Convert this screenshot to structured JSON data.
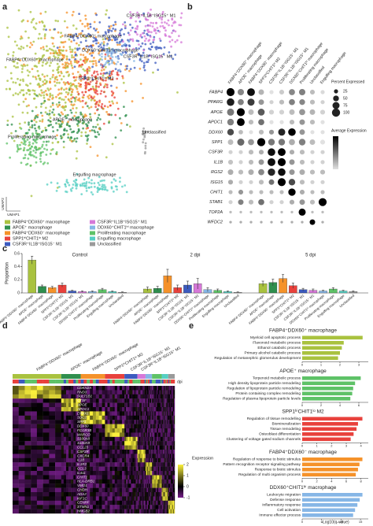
{
  "chart_data": [
    {
      "type": "umap",
      "panel": "a",
      "x_label": "UMAP1",
      "y_label": "UMAP2",
      "annotations": [
        "CSF3R⁺IL1B⁺ISG15⁺ M1",
        "FABP4⁺DDX60⁺ macrophage",
        "DDX60⁺CHIT1ʰⁱ macrophage",
        "CSF3R⁺IL1B⁺ISG15⁻ M1",
        "FABP4⁺DDX60⁻ macrophage",
        "SPP1ʰⁱCHIT1ˡᵒ M2",
        "APOE⁺ macrophage",
        "Unclassified",
        "Proliferating macrophage",
        "Engulfing macrophage"
      ],
      "series": [
        {
          "name": "FABP4⁺DDX60⁺ macrophage",
          "color": "#a9c23f"
        },
        {
          "name": "APOE⁺ macrophage",
          "color": "#2f8f4e"
        },
        {
          "name": "FABP4⁺DDX60⁻ macrophage",
          "color": "#f5922a"
        },
        {
          "name": "SPP1ʰⁱCHIT1ˡᵒ M2",
          "color": "#e8413c"
        },
        {
          "name": "CSF3R⁺IL1B⁺ISG15⁻ M1",
          "color": "#3c5bbf"
        },
        {
          "name": "CSF3R⁺IL1B⁺ISG15⁺ M1",
          "color": "#d678d8"
        },
        {
          "name": "DDX60⁺CHIT1ʰⁱ macrophage",
          "color": "#86b6e6"
        },
        {
          "name": "Proliferating macrophage",
          "color": "#5ec267"
        },
        {
          "name": "Engulfing macrophage",
          "color": "#55cfc3"
        },
        {
          "name": "Unclassified",
          "color": "#9a9a9a"
        }
      ]
    },
    {
      "type": "dotplot",
      "panel": "b",
      "genes": [
        "FABP4",
        "PPARG",
        "APOE",
        "APOC1",
        "DDX60",
        "SPP1",
        "CSF3R",
        "IL1B",
        "RGS2",
        "ISG15",
        "CHIT1",
        "STAB1",
        "TOP2A",
        "WFDC2"
      ],
      "categories": [
        "FABP4⁺DDX60⁺ macrophage",
        "APOE⁺ macrophage",
        "FABP4⁺DDX60⁻ macrophage",
        "SPP1ʰⁱCHIT1ˡᵒ M2",
        "CSF3R⁺IL1B⁺ISG15⁻ M1",
        "CSF3R⁺IL1B⁺ISG15⁺ M1",
        "DDX60⁺CHIT1ʰⁱ macrophage",
        "Proliferating macrophage",
        "Unclassified",
        "Engulfing macrophage"
      ],
      "size_title": "Percent Expressed",
      "size_ticks": [
        25,
        50,
        75,
        100
      ],
      "color_title": "Average Expression",
      "clim": [
        -1,
        2
      ],
      "pct": [
        [
          95,
          60,
          90,
          45,
          25,
          35,
          55,
          60,
          35,
          25
        ],
        [
          85,
          55,
          75,
          45,
          25,
          35,
          55,
          50,
          35,
          25
        ],
        [
          75,
          95,
          45,
          70,
          35,
          35,
          45,
          55,
          45,
          35
        ],
        [
          65,
          90,
          35,
          55,
          25,
          25,
          35,
          45,
          35,
          25
        ],
        [
          65,
          30,
          25,
          35,
          35,
          75,
          85,
          45,
          25,
          25
        ],
        [
          45,
          75,
          55,
          98,
          65,
          65,
          55,
          65,
          45,
          35
        ],
        [
          25,
          25,
          35,
          35,
          85,
          90,
          35,
          35,
          25,
          25
        ],
        [
          35,
          25,
          35,
          45,
          90,
          95,
          45,
          35,
          25,
          25
        ],
        [
          45,
          35,
          45,
          55,
          80,
          85,
          45,
          45,
          35,
          35
        ],
        [
          35,
          25,
          25,
          35,
          45,
          95,
          65,
          35,
          25,
          25
        ],
        [
          25,
          35,
          25,
          25,
          25,
          25,
          80,
          35,
          25,
          25
        ],
        [
          25,
          45,
          35,
          55,
          25,
          25,
          35,
          45,
          35,
          95
        ],
        [
          10,
          10,
          10,
          10,
          10,
          10,
          10,
          75,
          10,
          10
        ],
        [
          10,
          10,
          10,
          10,
          10,
          10,
          10,
          10,
          45,
          10
        ]
      ],
      "expr": [
        [
          2,
          0.2,
          1.8,
          -0.4,
          -1,
          -0.7,
          0.2,
          0.3,
          -0.5,
          -0.9
        ],
        [
          1.6,
          0.3,
          1.2,
          0,
          -0.8,
          -0.5,
          0.3,
          0.2,
          -0.5,
          -0.8
        ],
        [
          0.4,
          2,
          -0.5,
          0.8,
          -0.8,
          -0.8,
          -0.5,
          0,
          -0.4,
          -0.8
        ],
        [
          0.3,
          2,
          -0.5,
          0.5,
          -1,
          -1,
          -0.5,
          0,
          -0.5,
          -1
        ],
        [
          1,
          -0.5,
          -1,
          -0.5,
          0,
          1.5,
          2,
          0,
          -1,
          -1
        ],
        [
          -0.5,
          0.6,
          0,
          2,
          0.4,
          0.4,
          -0.3,
          0.3,
          -0.5,
          -1
        ],
        [
          -0.8,
          -0.8,
          -0.5,
          -0.3,
          1.8,
          2,
          -0.3,
          -0.5,
          -0.8,
          -0.8
        ],
        [
          -0.6,
          -0.8,
          -0.5,
          0,
          1.8,
          2,
          0,
          -0.5,
          -0.8,
          -0.8
        ],
        [
          -0.3,
          -0.5,
          -0.3,
          0.2,
          1.5,
          1.8,
          0,
          -0.3,
          -0.5,
          -0.5
        ],
        [
          -0.3,
          -0.8,
          -0.8,
          -0.5,
          0.5,
          2,
          1,
          -0.5,
          -0.8,
          -0.8
        ],
        [
          -0.5,
          0,
          -0.5,
          -0.5,
          -0.5,
          -0.5,
          2,
          -0.3,
          -0.5,
          -0.5
        ],
        [
          -0.8,
          0.3,
          -0.5,
          0.5,
          -0.8,
          -0.8,
          -0.3,
          0,
          -0.5,
          2
        ],
        [
          -0.5,
          -0.5,
          -0.5,
          -0.5,
          -0.5,
          -0.5,
          -0.5,
          2,
          -0.5,
          -0.5
        ],
        [
          -0.3,
          -0.3,
          -0.3,
          -0.3,
          -0.3,
          -0.3,
          -0.3,
          -0.3,
          2,
          -0.3
        ]
      ]
    },
    {
      "type": "bar",
      "panel": "c",
      "y_label": "Proportion",
      "groups": [
        "Control",
        "2 dpi",
        "5 dpi"
      ],
      "categories": [
        "FABP4⁺DDX60⁺ macrophage",
        "APOE⁺ macrophage",
        "FABP4⁺DDX60⁻ macrophage",
        "SPP1ʰⁱCHIT1ˡᵒ M2",
        "CSF3R⁺IL1B⁺ISG15⁻ M1",
        "CSF3R⁺IL1B⁺ISG15⁺ M1",
        "DDX60⁺CHIT1ʰⁱ macrophage",
        "Proliferating macrophage",
        "Engulfing macrophage",
        "Unclassified"
      ],
      "colors": [
        "#a9c23f",
        "#2f8f4e",
        "#f5922a",
        "#e8413c",
        "#3c5bbf",
        "#d678d8",
        "#86b6e6",
        "#5ec267",
        "#55cfc3",
        "#9a9a9a"
      ],
      "values": [
        [
          0.5,
          0.1,
          0.08,
          0.12,
          0.03,
          0.02,
          0.02,
          0.05,
          0.02,
          0.01
        ],
        [
          0.06,
          0.07,
          0.26,
          0.08,
          0.12,
          0.14,
          0.05,
          0.04,
          0.02,
          0.01
        ],
        [
          0.14,
          0.16,
          0.22,
          0.11,
          0.05,
          0.04,
          0.03,
          0.06,
          0.03,
          0.02
        ]
      ],
      "errors": [
        [
          0.06,
          0.02,
          0.02,
          0.03,
          0.01,
          0.01,
          0.01,
          0.02,
          0.01,
          0.005
        ],
        [
          0.03,
          0.03,
          0.1,
          0.04,
          0.06,
          0.08,
          0.03,
          0.02,
          0.01,
          0.005
        ],
        [
          0.04,
          0.05,
          0.06,
          0.04,
          0.02,
          0.02,
          0.01,
          0.02,
          0.01,
          0.01
        ]
      ],
      "ylim": [
        0,
        0.6
      ],
      "yticks": [
        0,
        0.2,
        0.4,
        0.6
      ]
    },
    {
      "type": "heatmap",
      "panel": "d",
      "categories": [
        "FABP4⁺DDX60⁺ macrophage",
        "APOE⁺ macrophage",
        "FABP4⁺DDX60⁻ macrophage",
        "SPP1ʰⁱCHIT1ˡᵒ M2",
        "CSF3R⁺IL1B⁺ISG15⁻ M1",
        "CSF3R⁺IL1B⁺ISG15⁺ M1"
      ],
      "colors": [
        "#a9c23f",
        "#2f8f4e",
        "#f5922a",
        "#e8413c",
        "#3c5bbf",
        "#d678d8",
        "#86b6e6",
        "#5ec267",
        "#55cfc3",
        "#9a9a9a"
      ],
      "genes": [
        "CDKN2A",
        "RND3",
        "SULT1B1",
        "CTSF",
        "APOE",
        "APOC1",
        "EPHX1",
        "SDC2",
        "SPP1",
        "DDX60",
        "FCGR3B",
        "MARCO",
        "S100A8",
        "S100A9",
        "CCL23",
        "CSF3R",
        "CXCR4",
        "IL1B",
        "IL1R2",
        "CCL3",
        "IL411",
        "CHIT1",
        "HLA-DRB1",
        "VMO1",
        "CHDH",
        "ADA2",
        "KIF1C",
        "CENPF",
        "STMN1",
        "HMGB2"
      ],
      "strip_label": "dpi",
      "color_title": "Expression",
      "cticks": [
        2,
        1,
        0,
        -1
      ]
    },
    {
      "type": "go_bars",
      "panel": "e",
      "x_label": "-Log10(q-value)",
      "panels": [
        {
          "title": "FABP4⁺DDX60⁺ macrophage",
          "color": "#a9c23f",
          "terms": [
            "Myeloid cell apoptotic process",
            "Flavonoid metabolic process",
            "Ethanol catabolic process",
            "Primary alcohol catabolic process",
            "Regulation of metanephric glomerulus development"
          ],
          "values": [
            3.2,
            2.2,
            2.1,
            2.0,
            1.9
          ],
          "xlim": [
            0,
            3.5
          ],
          "xticks": [
            0,
            1,
            2,
            3
          ]
        },
        {
          "title": "APOE⁺ macrophage",
          "color": "#5ec267",
          "terms": [
            "Terpenoid metabolic process",
            "High density lipoprotein particle remodeling",
            "Regulation of lipoprotein particle remodeling",
            "Protein containing complex remodeling",
            "Regulation of plasma lipoprotein particle levels"
          ],
          "values": [
            6.2,
            5.6,
            5.4,
            5.3,
            5.1
          ],
          "xlim": [
            0,
            7
          ],
          "xticks": [
            0,
            2,
            4,
            6
          ]
        },
        {
          "title": "SPP1ʰⁱCHIT1ˡᵒ M2",
          "color": "#e8413c",
          "terms": [
            "Regulation of tissue remodelling",
            "Biomineralization",
            "Tissue remodeling",
            "Osteoblast differentiation",
            "Clustering of voltage gated sodium channels"
          ],
          "values": [
            4.1,
            3.8,
            3.7,
            3.5,
            3.3
          ],
          "xlim": [
            0,
            4.5
          ],
          "xticks": [
            0,
            1,
            2,
            3,
            4
          ]
        },
        {
          "title": "FABP4⁺DDX60⁻ macrophage",
          "color": "#f5922a",
          "terms": [
            "Regulation of response to biotic stimulus",
            "Pattern recognition receptor signaling pathway",
            "Response to biotic stimulus",
            "Regulation of multi organism process"
          ],
          "values": [
            8.2,
            7.8,
            7.6,
            7.3
          ],
          "xlim": [
            0,
            9
          ],
          "xticks": [
            0,
            2,
            4,
            6,
            8
          ]
        },
        {
          "title": "DDX60⁺CHIT1ʰⁱ macrophage",
          "color": "#86b6e6",
          "terms": [
            "Leukocyte migration",
            "Defense response",
            "Inflammatory response",
            "Cell activation",
            "Immune effector process"
          ],
          "values": [
            15.5,
            14.8,
            14.2,
            13.6,
            13.1
          ],
          "xlim": [
            0,
            17
          ],
          "xticks": [
            0,
            5,
            10,
            15
          ]
        }
      ]
    }
  ]
}
